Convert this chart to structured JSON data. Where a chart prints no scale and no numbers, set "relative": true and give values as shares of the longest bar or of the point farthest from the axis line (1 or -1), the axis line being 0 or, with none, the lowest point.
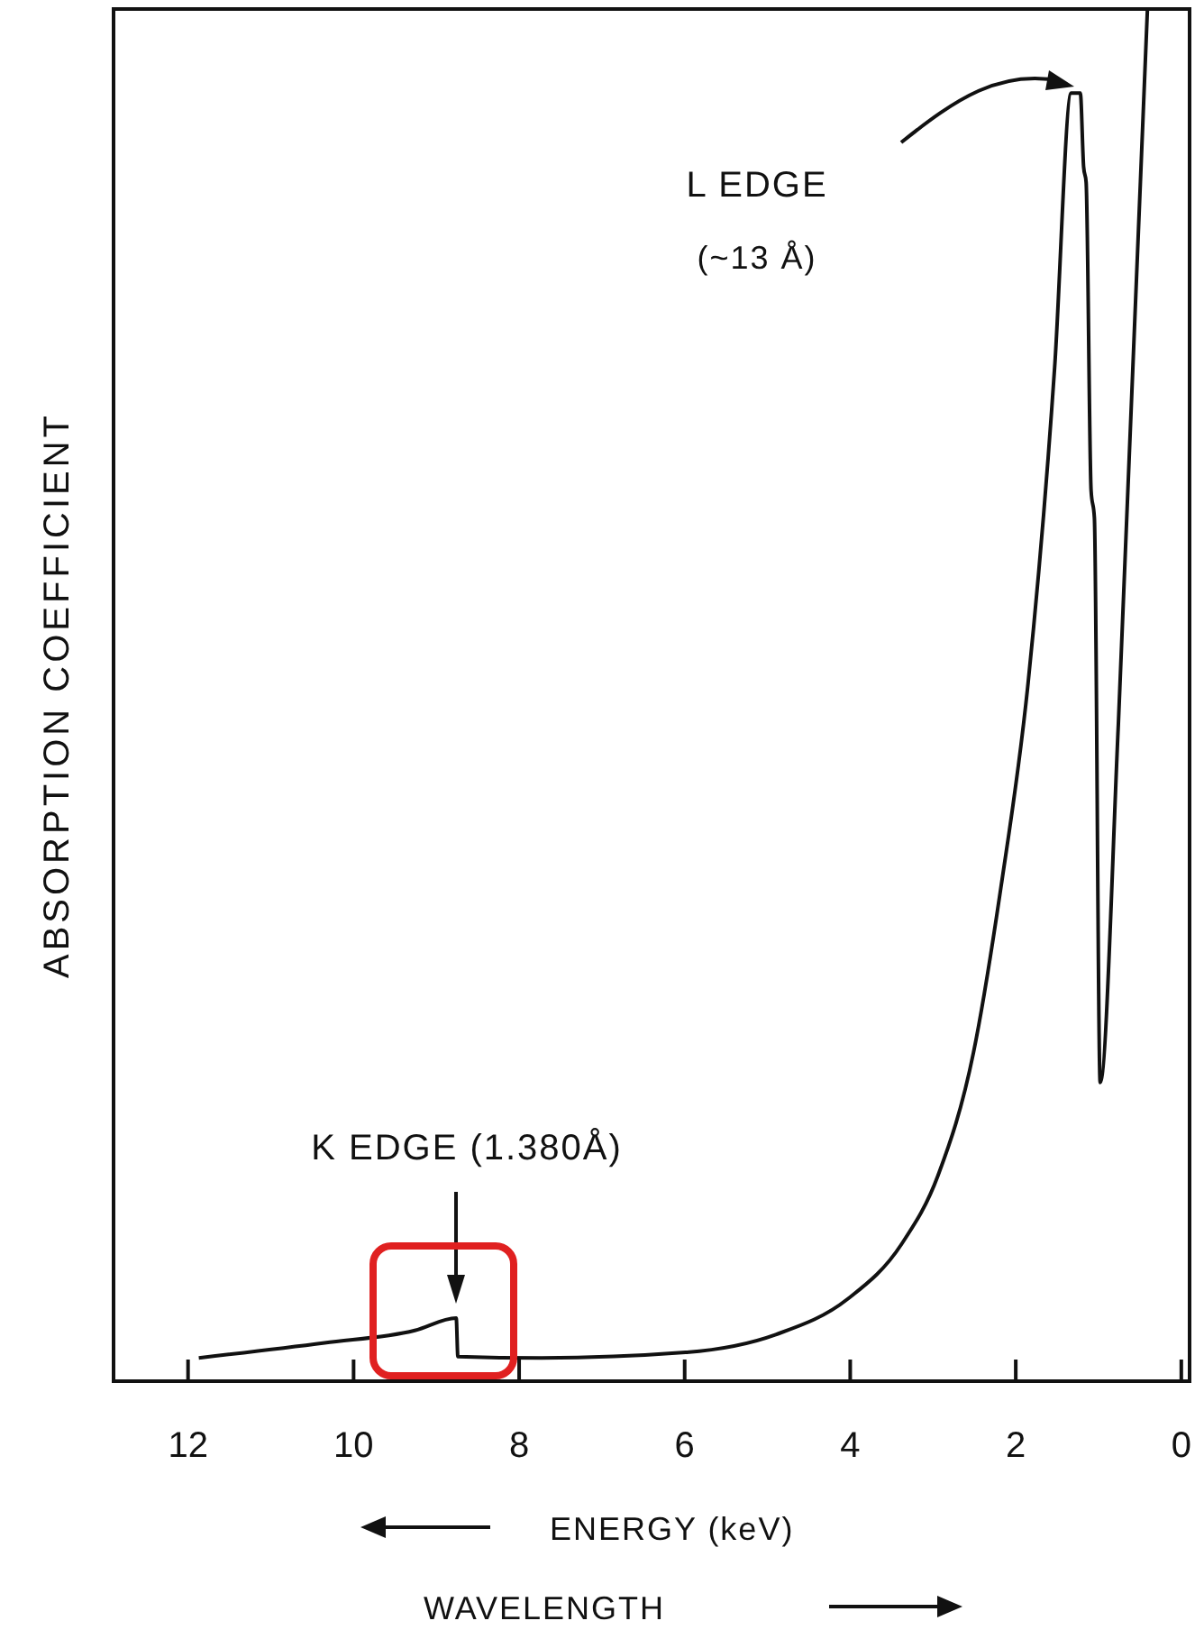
{
  "chart_data": {
    "type": "line",
    "relative": true,
    "xlabel": "ENERGY (keV)",
    "ylabel": "ABSORPTION COEFFICIENT",
    "xlim": [
      12.9,
      -0.1
    ],
    "xticks": [
      12,
      10,
      8,
      6,
      4,
      2,
      0
    ],
    "x": [
      11.87,
      10.35,
      9.26,
      8.76,
      8.74,
      7.73,
      5.99,
      4.9,
      4.03,
      3.38,
      2.94,
      2.51,
      2.18,
      1.85,
      1.53,
      1.33,
      1.22,
      1.18,
      1.15,
      1.09,
      1.05,
      0.98,
      0.76,
      0.41
    ],
    "series": [
      {
        "color": "#111111",
        "values": [
          0.017,
          0.028,
          0.037,
          0.046,
          0.018,
          0.017,
          0.021,
          0.034,
          0.06,
          0.1,
          0.15,
          0.24,
          0.36,
          0.51,
          0.74,
          0.94,
          0.94,
          0.886,
          0.875,
          0.65,
          0.63,
          0.218,
          0.48,
          1.0
        ]
      }
    ],
    "annotations": [
      "K EDGE (1.380Å)",
      "L EDGE",
      "(~13 Å)",
      "WAVELENGTH"
    ],
    "grid": false,
    "marker": "none",
    "line_style": "solid"
  }
}
